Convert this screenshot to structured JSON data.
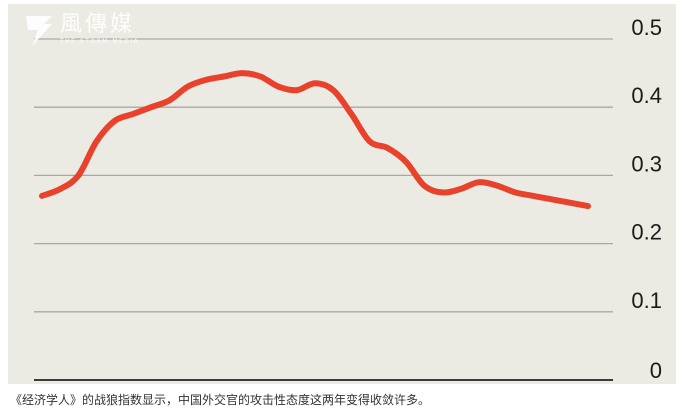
{
  "logo": {
    "name": "風傳媒",
    "subtitle": "THE STORM MEDIA"
  },
  "caption": "《经济学人》的战狼指数显示，中国外交官的攻击性态度这两年变得收敛许多。",
  "colors": {
    "line": "#e8412c",
    "grid": "#a9a9a4",
    "background": "#ecebe3",
    "axis": "#3a3a3a"
  },
  "chart_data": {
    "type": "line",
    "title": "",
    "xlabel": "",
    "ylabel": "",
    "ylim": [
      0,
      0.5
    ],
    "yticks": [
      0,
      0.1,
      0.2,
      0.3,
      0.4,
      0.5
    ],
    "ytick_labels": [
      "0",
      "0.1",
      "0.2",
      "0.3",
      "0.4",
      "0.5"
    ],
    "y_axis_position": "right",
    "grid": true,
    "x": [
      0,
      1,
      2,
      3,
      4,
      5,
      6,
      7,
      8,
      9,
      10,
      11,
      12,
      13,
      14,
      15,
      16,
      17,
      18,
      19,
      20,
      21,
      22,
      23,
      24,
      25,
      26,
      27,
      28,
      29,
      30
    ],
    "series": [
      {
        "name": "",
        "values": [
          0.27,
          0.28,
          0.3,
          0.35,
          0.38,
          0.39,
          0.4,
          0.41,
          0.43,
          0.44,
          0.445,
          0.45,
          0.445,
          0.43,
          0.425,
          0.435,
          0.425,
          0.39,
          0.35,
          0.34,
          0.32,
          0.285,
          0.275,
          0.28,
          0.29,
          0.285,
          0.275,
          0.27,
          0.265,
          0.26,
          0.255
        ]
      }
    ]
  }
}
